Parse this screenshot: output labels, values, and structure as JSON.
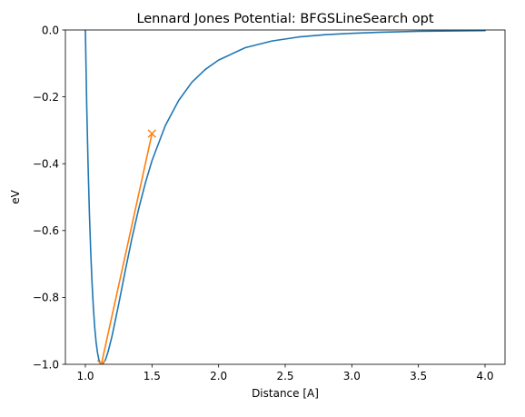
{
  "chart_data": {
    "type": "line",
    "title": "Lennard Jones Potential: BFGSLineSearch opt",
    "xlabel": "Distance [A]",
    "ylabel": "eV",
    "xlim": [
      0.85,
      4.15
    ],
    "ylim": [
      -1.0,
      0.0
    ],
    "x_ticks": [
      "1.0",
      "1.5",
      "2.0",
      "2.5",
      "3.0",
      "3.5",
      "4.0"
    ],
    "y_ticks": [
      "0.0",
      "−0.2",
      "−0.4",
      "−0.6",
      "−0.8",
      "−1.0"
    ],
    "grid": false,
    "legend": "none",
    "series": [
      {
        "kind": "curve",
        "color": "#1f77b4",
        "x": [
          1.0,
          1.01,
          1.02,
          1.03,
          1.04,
          1.05,
          1.06,
          1.07,
          1.08,
          1.09,
          1.1,
          1.11,
          1.12,
          1.13,
          1.15,
          1.17,
          1.2,
          1.25,
          1.3,
          1.35,
          1.4,
          1.45,
          1.5,
          1.6,
          1.7,
          1.8,
          1.9,
          2.0,
          2.2,
          2.4,
          2.6,
          2.8,
          3.0,
          3.2,
          3.5,
          4.0
        ],
        "y": [
          0.0,
          -0.225,
          -0.4,
          -0.546,
          -0.663,
          -0.756,
          -0.831,
          -0.889,
          -0.932,
          -0.963,
          -0.984,
          -0.996,
          -1.0,
          -0.999,
          -0.987,
          -0.963,
          -0.916,
          -0.82,
          -0.719,
          -0.622,
          -0.535,
          -0.458,
          -0.391,
          -0.286,
          -0.211,
          -0.156,
          -0.118,
          -0.09,
          -0.053,
          -0.033,
          -0.021,
          -0.014,
          -0.01,
          -0.007,
          -0.004,
          -0.002
        ]
      },
      {
        "kind": "optimization-path",
        "color": "#ff7f0e",
        "marker": "x",
        "x": [
          1.5,
          1.12
        ],
        "y": [
          -0.31,
          -1.0
        ]
      }
    ]
  }
}
